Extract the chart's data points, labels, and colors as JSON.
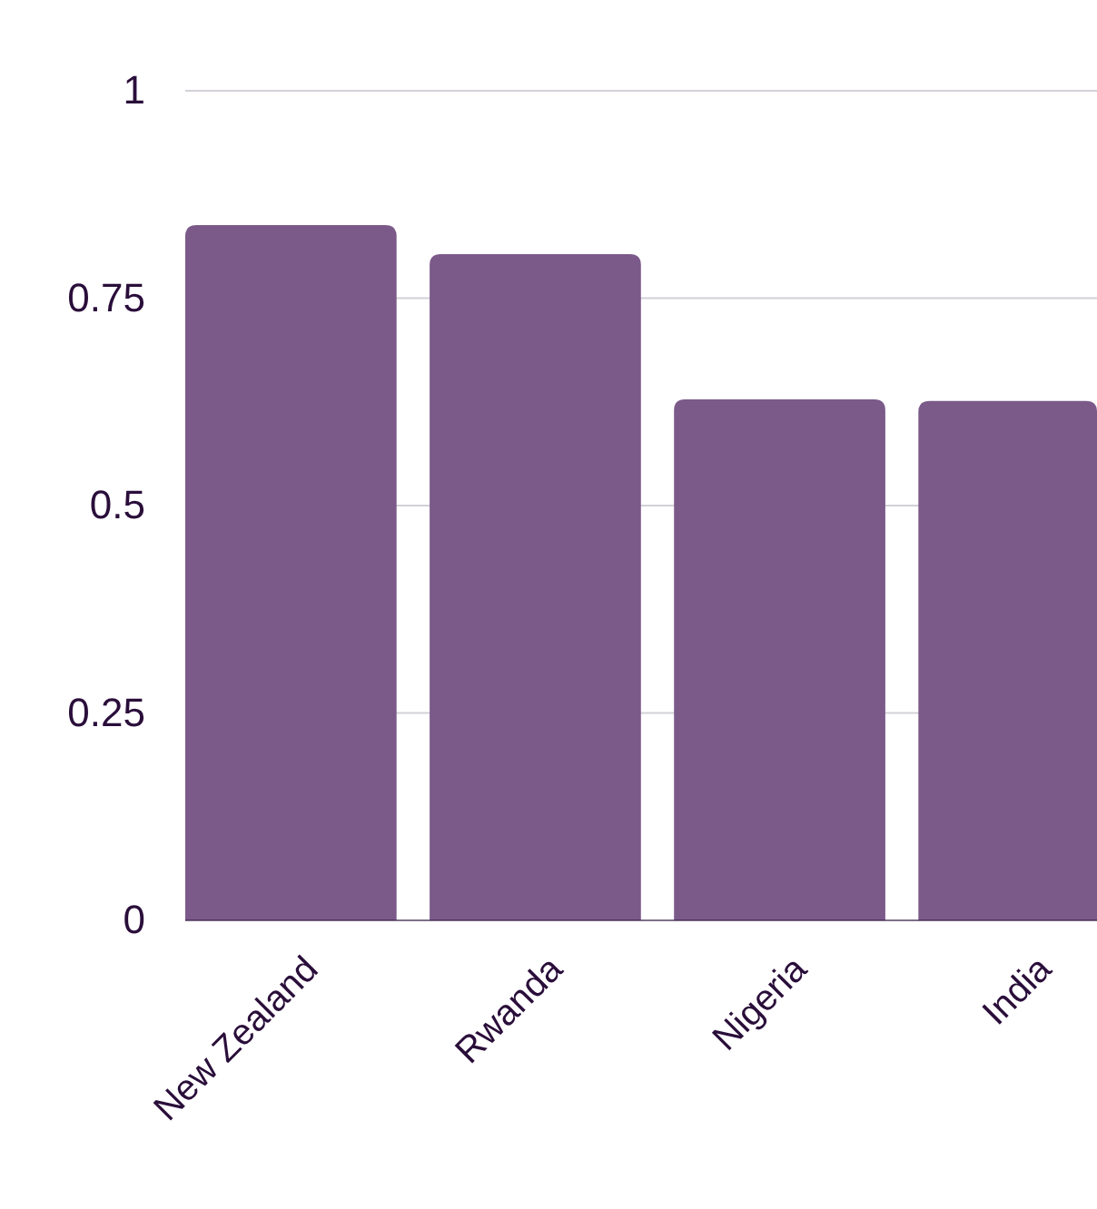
{
  "chart_data": {
    "type": "bar",
    "categories": [
      "New Zealand",
      "Rwanda",
      "Nigeria",
      "India"
    ],
    "values": [
      0.838,
      0.803,
      0.628,
      0.626
    ],
    "color": "#7b5a8a",
    "ylim": [
      0,
      1
    ],
    "yticks": [
      0,
      {
        "value": 0.25,
        "label": "0.25"
      },
      {
        "value": 0.5,
        "label": "0.5"
      },
      {
        "value": 0.75,
        "label": "0.75"
      },
      1
    ],
    "grid": "y"
  }
}
